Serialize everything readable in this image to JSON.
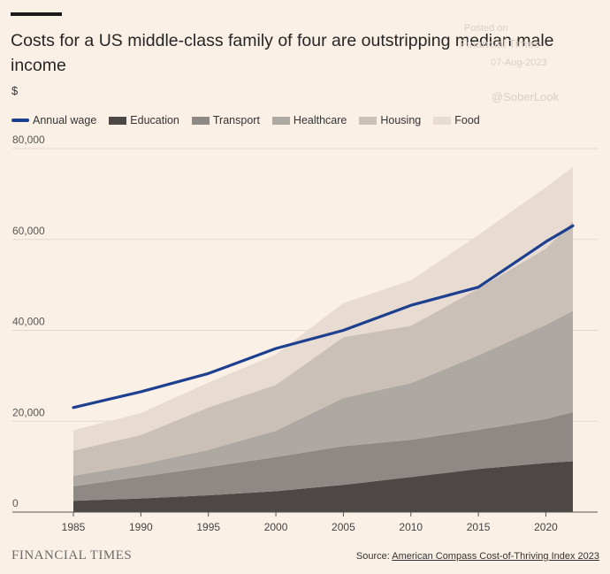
{
  "chart_data": {
    "type": "area",
    "title": "Costs for a US middle-class family of four are outstripping median male income",
    "ylabel": "$",
    "xlim": [
      1985,
      2022
    ],
    "ylim": [
      0,
      80000
    ],
    "x_ticks": [
      1985,
      1990,
      1995,
      2000,
      2005,
      2010,
      2015,
      2020
    ],
    "y_ticks": [
      0,
      20000,
      40000,
      60000,
      80000
    ],
    "y_tick_labels": [
      "0",
      "20,000",
      "40,000",
      "60,000",
      "80,000"
    ],
    "grid": "horizontal",
    "legend_position": "top",
    "x": [
      1985,
      1990,
      1995,
      2000,
      2005,
      2010,
      2015,
      2020,
      2022
    ],
    "stacked_series": [
      {
        "name": "Education",
        "color": "#4d4846",
        "values": [
          2500,
          3000,
          3700,
          4600,
          6000,
          7700,
          9500,
          10800,
          11200
        ]
      },
      {
        "name": "Transport",
        "color": "#8e8985",
        "values": [
          3200,
          4800,
          6200,
          7500,
          8500,
          8200,
          8600,
          9700,
          10800
        ]
      },
      {
        "name": "Healthcare",
        "color": "#aea8a3",
        "values": [
          2300,
          2700,
          3800,
          5800,
          10600,
          12500,
          16400,
          20700,
          22300
        ]
      },
      {
        "name": "Housing",
        "color": "#cbc0b7",
        "values": [
          5500,
          6500,
          9300,
          10100,
          13400,
          12600,
          14700,
          16800,
          19700
        ]
      },
      {
        "name": "Food",
        "color": "#e8dcd2",
        "values": [
          4500,
          4800,
          5500,
          6700,
          7500,
          10000,
          11800,
          13500,
          12000
        ]
      }
    ],
    "line_series": {
      "name": "Annual wage",
      "color": "#1d3f8f",
      "values": [
        23000,
        26500,
        30500,
        36000,
        40000,
        45500,
        49500,
        59500,
        63000
      ]
    }
  },
  "legend": {
    "items": [
      {
        "label": "Annual wage",
        "color": "#1d3f8f",
        "kind": "line"
      },
      {
        "label": "Education",
        "color": "#4d4846",
        "kind": "area"
      },
      {
        "label": "Transport",
        "color": "#8e8985",
        "kind": "area"
      },
      {
        "label": "Healthcare",
        "color": "#aea8a3",
        "kind": "area"
      },
      {
        "label": "Housing",
        "color": "#cbc0b7",
        "kind": "area"
      },
      {
        "label": "Food",
        "color": "#e8dcd2",
        "kind": "area"
      }
    ]
  },
  "watermark": {
    "line1": "Posted on",
    "line2": "Financial Times",
    "line3": "07-Aug-2023",
    "handle": "@SoberLook"
  },
  "footer": {
    "brand": "FINANCIAL TIMES",
    "source_prefix": "Source: ",
    "source_link": "American Compass Cost-of-Thriving Index 2023"
  }
}
